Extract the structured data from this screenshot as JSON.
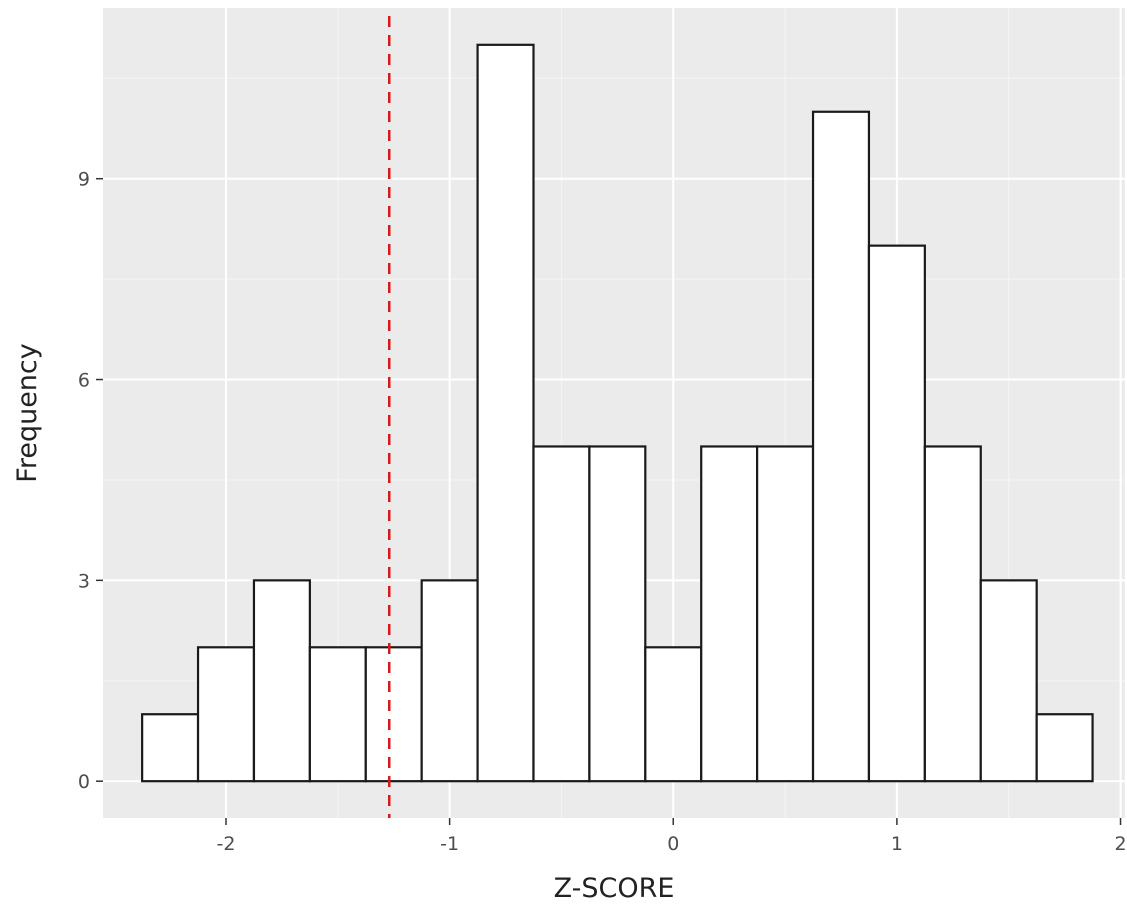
{
  "chart_data": {
    "type": "bar",
    "subtype": "histogram",
    "xlabel": "Z-SCORE",
    "ylabel": "Frequency",
    "xlim": [
      -2.55,
      2.02
    ],
    "ylim": [
      -0.55,
      11.55
    ],
    "x_ticks": [
      -2,
      -1,
      0,
      1,
      2
    ],
    "x_tick_labels": [
      "-2",
      "-1",
      "0",
      "1",
      "2"
    ],
    "y_ticks": [
      0,
      3,
      6,
      9
    ],
    "y_tick_labels": [
      "0",
      "3",
      "6",
      "9"
    ],
    "bin_edges": [
      -2.375,
      -2.125,
      -1.875,
      -1.625,
      -1.375,
      -1.125,
      -0.875,
      -0.625,
      -0.375,
      -0.125,
      0.125,
      0.375,
      0.625,
      0.875,
      1.125,
      1.375,
      1.625,
      1.875
    ],
    "counts": [
      1,
      2,
      3,
      2,
      2,
      3,
      11,
      5,
      5,
      2,
      5,
      5,
      10,
      8,
      5,
      3,
      1
    ],
    "reference_line": {
      "x": -1.27,
      "style": "dashed",
      "color": "#d7191c"
    },
    "panel_background": "#ebebeb",
    "grid": true,
    "legend": "none"
  }
}
